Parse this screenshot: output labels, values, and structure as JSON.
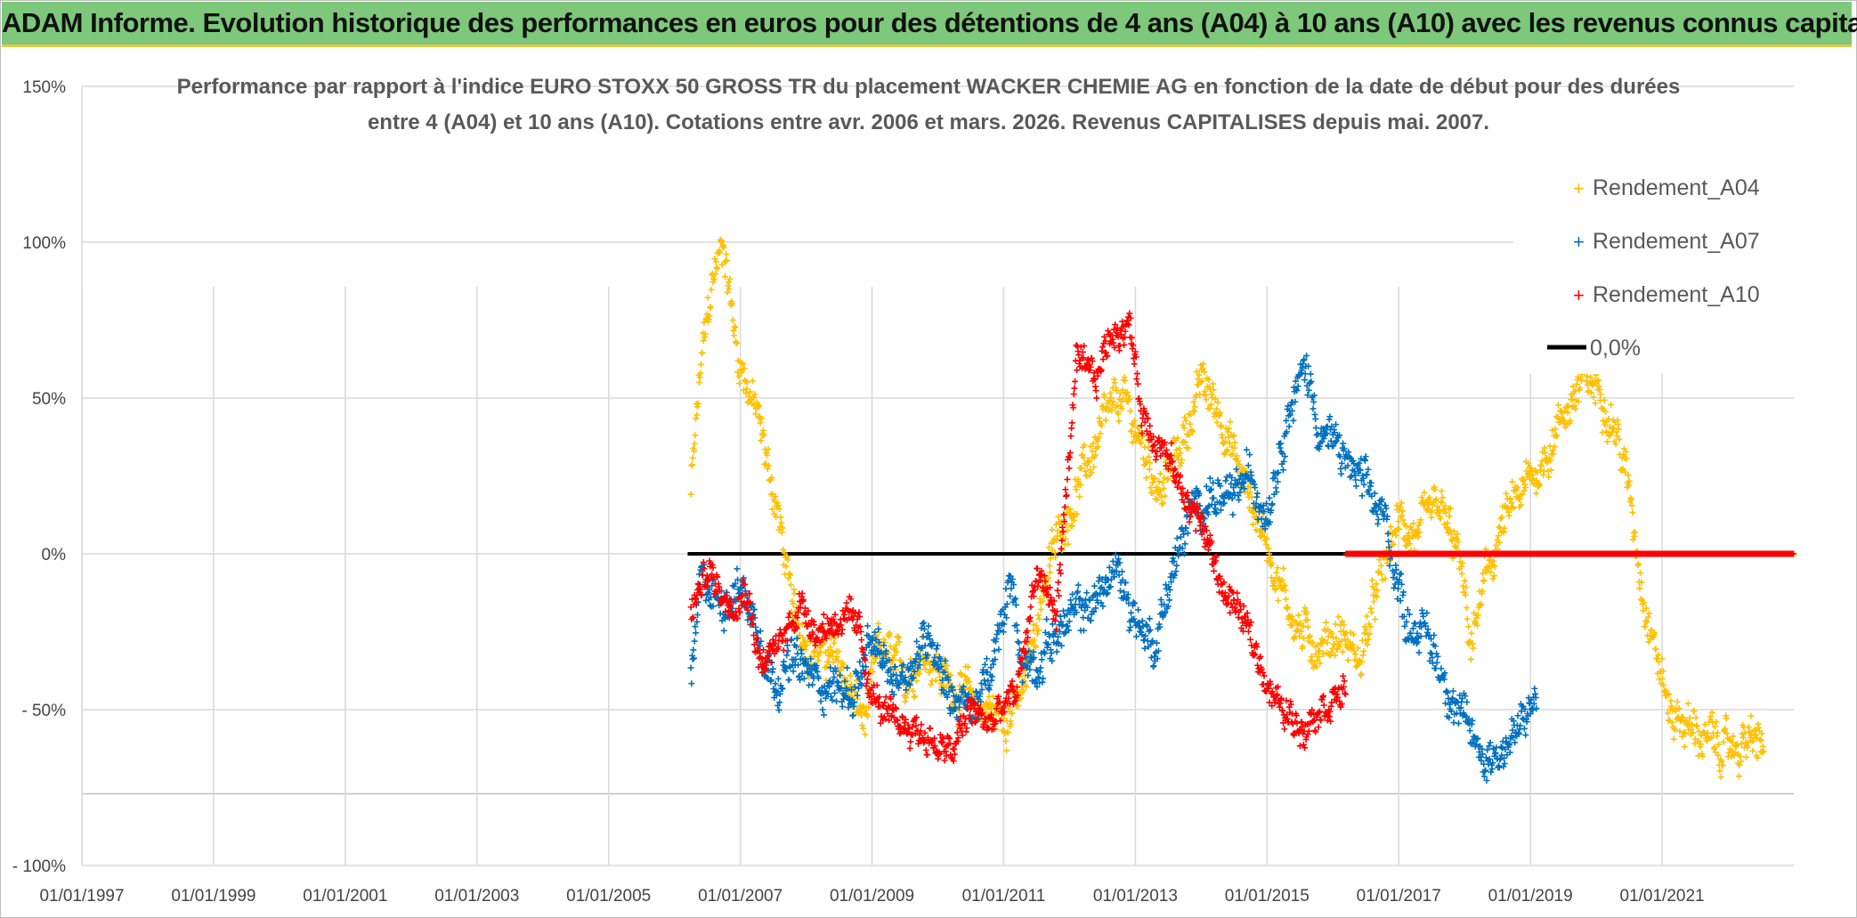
{
  "header": {
    "title": "ADAM Informe. Evolution historique des performances en euros pour des détentions de 4 ans (A04) à 10 ans (A10) avec les revenus connus capitalisés"
  },
  "chart_data": {
    "type": "scatter",
    "subtitle_line1": "Performance par rapport à l'indice EURO STOXX 50 GROSS TR  du placement WACKER CHEMIE AG en fonction de la date de début pour des durées",
    "subtitle_line2": "entre 4 (A04) et 10 ans (A10). Cotations entre avr. 2006 et mars. 2026. Revenus CAPITALISES depuis mai. 2007.",
    "xlim": [
      1997.0,
      2023.0
    ],
    "ylim": [
      -100,
      150
    ],
    "x_ticks": [
      {
        "value": 1997,
        "label": "01/01/1997"
      },
      {
        "value": 1999,
        "label": "01/01/1999"
      },
      {
        "value": 2001,
        "label": "01/01/2001"
      },
      {
        "value": 2003,
        "label": "01/01/2003"
      },
      {
        "value": 2005,
        "label": "01/01/2005"
      },
      {
        "value": 2007,
        "label": "01/01/2007"
      },
      {
        "value": 2009,
        "label": "01/01/2009"
      },
      {
        "value": 2011,
        "label": "01/01/2011"
      },
      {
        "value": 2013,
        "label": "01/01/2013"
      },
      {
        "value": 2015,
        "label": "01/01/2015"
      },
      {
        "value": 2017,
        "label": "01/01/2017"
      },
      {
        "value": 2019,
        "label": "01/01/2019"
      },
      {
        "value": 2021,
        "label": "01/01/2021"
      }
    ],
    "y_ticks": [
      {
        "value": 150,
        "label": "150%"
      },
      {
        "value": 100,
        "label": "100%"
      },
      {
        "value": 50,
        "label": "50%"
      },
      {
        "value": 0,
        "label": "0%"
      },
      {
        "value": -50,
        "label": "- 50%"
      },
      {
        "value": -100,
        "label": "- 100%"
      }
    ],
    "series": [
      {
        "name": "Rendement_A04",
        "color": "#ffc000",
        "marker": "+",
        "anchors": [
          [
            2006.25,
            20
          ],
          [
            2006.4,
            60
          ],
          [
            2006.6,
            90
          ],
          [
            2006.75,
            100
          ],
          [
            2006.95,
            65
          ],
          [
            2007.1,
            55
          ],
          [
            2007.25,
            45
          ],
          [
            2007.4,
            30
          ],
          [
            2007.6,
            10
          ],
          [
            2007.8,
            -20
          ],
          [
            2008.1,
            -30
          ],
          [
            2008.5,
            -35
          ],
          [
            2008.9,
            -55
          ],
          [
            2009.1,
            -30
          ],
          [
            2009.5,
            -40
          ],
          [
            2009.8,
            -30
          ],
          [
            2010.1,
            -40
          ],
          [
            2010.4,
            -45
          ],
          [
            2010.7,
            -50
          ],
          [
            2011.0,
            -52
          ],
          [
            2011.3,
            -45
          ],
          [
            2011.6,
            -10
          ],
          [
            2011.9,
            10
          ],
          [
            2012.2,
            25
          ],
          [
            2012.5,
            40
          ],
          [
            2012.8,
            50
          ],
          [
            2013.1,
            35
          ],
          [
            2013.4,
            20
          ],
          [
            2013.7,
            35
          ],
          [
            2014.0,
            55
          ],
          [
            2014.3,
            45
          ],
          [
            2014.6,
            25
          ],
          [
            2014.9,
            10
          ],
          [
            2015.2,
            -10
          ],
          [
            2015.5,
            -25
          ],
          [
            2015.8,
            -30
          ],
          [
            2016.1,
            -25
          ],
          [
            2016.4,
            -35
          ],
          [
            2016.7,
            -10
          ],
          [
            2017.0,
            10
          ],
          [
            2017.3,
            5
          ],
          [
            2017.6,
            15
          ],
          [
            2017.9,
            0
          ],
          [
            2018.1,
            -30
          ],
          [
            2018.3,
            -10
          ],
          [
            2018.6,
            10
          ],
          [
            2018.9,
            20
          ],
          [
            2019.2,
            30
          ],
          [
            2019.5,
            45
          ],
          [
            2019.8,
            55
          ],
          [
            2020.1,
            52
          ],
          [
            2020.3,
            40
          ],
          [
            2020.5,
            20
          ],
          [
            2020.7,
            -10
          ],
          [
            2020.9,
            -30
          ],
          [
            2021.1,
            -50
          ],
          [
            2021.4,
            -55
          ],
          [
            2021.7,
            -60
          ],
          [
            2022.0,
            -63
          ],
          [
            2022.3,
            -60
          ],
          [
            2022.55,
            -62
          ]
        ],
        "spread": 9,
        "zero_line": {
          "from": 2020.6,
          "to": 2023.0
        }
      },
      {
        "name": "Rendement_A07",
        "color": "#0070c0",
        "marker": "+",
        "anchors": [
          [
            2006.25,
            -40
          ],
          [
            2006.4,
            -10
          ],
          [
            2006.7,
            -15
          ],
          [
            2007.0,
            -10
          ],
          [
            2007.3,
            -25
          ],
          [
            2007.5,
            -40
          ],
          [
            2007.8,
            -35
          ],
          [
            2008.1,
            -40
          ],
          [
            2008.4,
            -42
          ],
          [
            2008.7,
            -45
          ],
          [
            2009.0,
            -30
          ],
          [
            2009.3,
            -40
          ],
          [
            2009.6,
            -35
          ],
          [
            2009.9,
            -25
          ],
          [
            2010.2,
            -45
          ],
          [
            2010.5,
            -50
          ],
          [
            2010.8,
            -40
          ],
          [
            2011.1,
            -10
          ],
          [
            2011.3,
            -35
          ],
          [
            2011.5,
            -35
          ],
          [
            2011.8,
            -25
          ],
          [
            2012.1,
            -20
          ],
          [
            2012.4,
            -15
          ],
          [
            2012.7,
            -5
          ],
          [
            2013.0,
            -20
          ],
          [
            2013.3,
            -30
          ],
          [
            2013.5,
            -10
          ],
          [
            2013.8,
            10
          ],
          [
            2014.1,
            20
          ],
          [
            2014.4,
            15
          ],
          [
            2014.7,
            25
          ],
          [
            2015.0,
            15
          ],
          [
            2015.3,
            45
          ],
          [
            2015.6,
            60
          ],
          [
            2015.8,
            40
          ],
          [
            2016.0,
            35
          ],
          [
            2016.2,
            30
          ],
          [
            2016.5,
            20
          ],
          [
            2016.8,
            10
          ],
          [
            2017.1,
            -20
          ],
          [
            2017.4,
            -25
          ],
          [
            2017.7,
            -40
          ],
          [
            2018.0,
            -55
          ],
          [
            2018.3,
            -65
          ],
          [
            2018.6,
            -62
          ],
          [
            2018.9,
            -55
          ],
          [
            2019.1,
            -45
          ]
        ],
        "spread": 9,
        "zero_line": null
      },
      {
        "name": "Rendement_A10",
        "color": "#ff0000",
        "marker": "+",
        "anchors": [
          [
            2006.25,
            -20
          ],
          [
            2006.5,
            -5
          ],
          [
            2006.8,
            -15
          ],
          [
            2007.1,
            -10
          ],
          [
            2007.3,
            -35
          ],
          [
            2007.6,
            -30
          ],
          [
            2007.9,
            -15
          ],
          [
            2008.2,
            -25
          ],
          [
            2008.5,
            -20
          ],
          [
            2008.8,
            -25
          ],
          [
            2009.0,
            -45
          ],
          [
            2009.3,
            -55
          ],
          [
            2009.6,
            -55
          ],
          [
            2009.9,
            -60
          ],
          [
            2010.2,
            -65
          ],
          [
            2010.5,
            -50
          ],
          [
            2010.8,
            -55
          ],
          [
            2011.0,
            -50
          ],
          [
            2011.2,
            -45
          ],
          [
            2011.5,
            -5
          ],
          [
            2011.8,
            -20
          ],
          [
            2012.1,
            60
          ],
          [
            2012.4,
            55
          ],
          [
            2012.6,
            70
          ],
          [
            2012.9,
            75
          ],
          [
            2013.1,
            45
          ],
          [
            2013.4,
            35
          ],
          [
            2013.7,
            20
          ],
          [
            2014.0,
            10
          ],
          [
            2014.3,
            -10
          ],
          [
            2014.6,
            -20
          ],
          [
            2014.9,
            -35
          ],
          [
            2015.2,
            -50
          ],
          [
            2015.5,
            -55
          ],
          [
            2015.8,
            -48
          ],
          [
            2016.1,
            -45
          ],
          [
            2016.2,
            -42
          ]
        ],
        "spread": 7,
        "zero_line": {
          "from": 2016.2,
          "to": 2023.0
        }
      }
    ],
    "reference_line": {
      "name": "0,0%",
      "color": "#000000",
      "y": 0,
      "from": 2006.2,
      "to": 2016.2
    },
    "legend_position": "top-right"
  }
}
